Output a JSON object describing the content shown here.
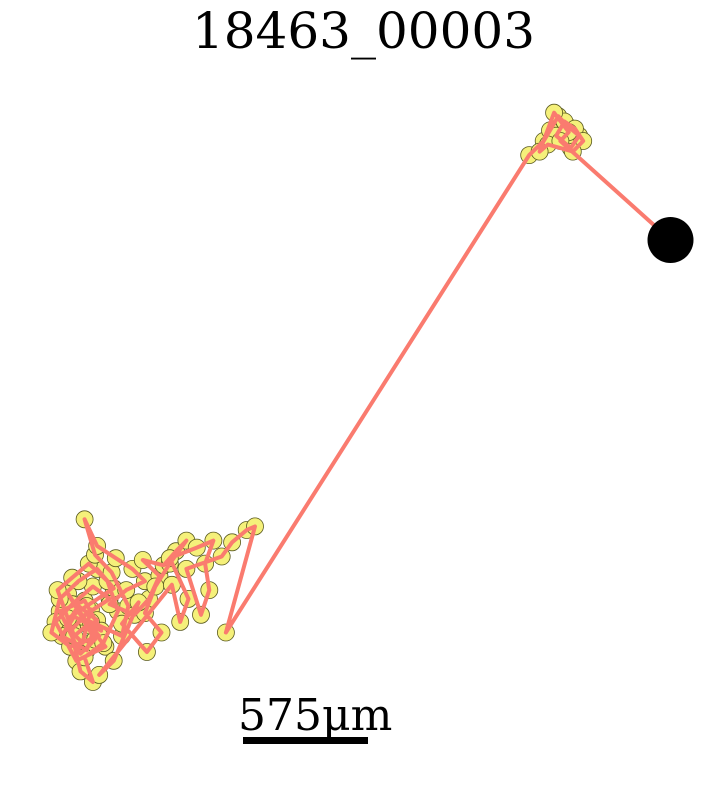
{
  "chart_data": {
    "type": "scatter",
    "title": "18463_00003",
    "xlabel": "",
    "ylabel": "",
    "units": "µm",
    "scale_bar": {
      "value": 575,
      "label": "575μm"
    },
    "colors": {
      "marker_fill": "#f5f07a",
      "marker_edge": "#5a5a20",
      "path": "#fa7b6f",
      "end_marker": "#000000"
    },
    "series": [
      {
        "role": "track",
        "points": [
          [
            -2500,
            -1520
          ],
          [
            -2410,
            -1410
          ],
          [
            -2450,
            -1600
          ],
          [
            -2530,
            -1500
          ],
          [
            -2470,
            -1390
          ],
          [
            -2380,
            -1470
          ],
          [
            -2430,
            -1640
          ],
          [
            -2550,
            -1560
          ],
          [
            -2490,
            -1450
          ],
          [
            -2360,
            -1530
          ],
          [
            -2440,
            -1360
          ],
          [
            -2560,
            -1420
          ],
          [
            -2460,
            -1660
          ],
          [
            -2390,
            -1580
          ],
          [
            -2520,
            -1320
          ],
          [
            -2420,
            -1500
          ],
          [
            -2340,
            -1620
          ],
          [
            -2480,
            -1700
          ],
          [
            -2580,
            -1480
          ],
          [
            -2500,
            -1380
          ],
          [
            -2400,
            -1280
          ],
          [
            -2320,
            -1350
          ],
          [
            -2450,
            -1450
          ],
          [
            -2370,
            -1560
          ],
          [
            -2510,
            -1620
          ],
          [
            -2600,
            -1540
          ],
          [
            -2560,
            -1350
          ],
          [
            -2470,
            -1250
          ],
          [
            -2380,
            -1180
          ],
          [
            -2300,
            -1290
          ],
          [
            -2430,
            -1390
          ],
          [
            -2520,
            -1460
          ],
          [
            -2460,
            -1760
          ],
          [
            -2400,
            -1820
          ],
          [
            -2440,
            -1680
          ],
          [
            -2350,
            -1600
          ],
          [
            -2280,
            -1420
          ],
          [
            -2330,
            -1250
          ],
          [
            -2420,
            -1150
          ],
          [
            -2500,
            -1230
          ],
          [
            -2570,
            -1300
          ],
          [
            -2490,
            -1560
          ],
          [
            -2410,
            -1480
          ],
          [
            -2260,
            -1560
          ],
          [
            -2230,
            -1390
          ],
          [
            -2310,
            -1200
          ],
          [
            -2390,
            -1100
          ],
          [
            -2440,
            -900
          ],
          [
            -2380,
            -1050
          ],
          [
            -2290,
            -1120
          ],
          [
            -2210,
            -1180
          ],
          [
            -2150,
            -1250
          ],
          [
            -2240,
            -1300
          ],
          [
            -2320,
            -1380
          ],
          [
            -2200,
            -1440
          ],
          [
            -2130,
            -1350
          ],
          [
            -2080,
            -1220
          ],
          [
            -2160,
            -1130
          ],
          [
            -2060,
            -1160
          ],
          [
            -2000,
            -1080
          ],
          [
            -1950,
            -1020
          ],
          [
            -2030,
            -1150
          ],
          [
            -2100,
            -1280
          ],
          [
            -2150,
            -1430
          ],
          [
            -2070,
            -1540
          ],
          [
            -2140,
            -1650
          ],
          [
            -2260,
            -1490
          ],
          [
            -2180,
            -1370
          ],
          [
            -2300,
            -1700
          ],
          [
            -2370,
            -1780
          ],
          [
            -2020,
            -1270
          ],
          [
            -1980,
            -1480
          ],
          [
            -1940,
            -1350
          ],
          [
            -2030,
            -1120
          ],
          [
            -1900,
            -1060
          ],
          [
            -1820,
            -1020
          ],
          [
            -1860,
            -1150
          ],
          [
            -1840,
            -1300
          ],
          [
            -1880,
            -1440
          ],
          [
            -1950,
            -1180
          ],
          [
            -1780,
            -1110
          ],
          [
            -1730,
            -1030
          ],
          [
            -1660,
            -960
          ],
          [
            -1620,
            -940
          ],
          [
            -1760,
            -1540
          ],
          [
            -300,
            1160
          ],
          [
            -230,
            1240
          ],
          [
            -200,
            1300
          ],
          [
            -160,
            1380
          ],
          [
            -120,
            1330
          ],
          [
            -60,
            1270
          ],
          [
            -100,
            1200
          ],
          [
            -170,
            1270
          ],
          [
            -130,
            1350
          ],
          [
            -80,
            1310
          ],
          [
            -40,
            1240
          ],
          [
            -90,
            1180
          ],
          [
            -210,
            1220
          ],
          [
            -250,
            1180
          ],
          [
            -180,
            1400
          ],
          [
            -110,
            1290
          ],
          [
            -150,
            1240
          ],
          [
            380,
            680
          ]
        ]
      },
      {
        "role": "end",
        "points": [
          [
            380,
            680
          ]
        ]
      }
    ],
    "xlim": [
      -2650,
      450
    ],
    "ylim": [
      -1950,
      1500
    ],
    "grid": false,
    "legend": "none"
  }
}
